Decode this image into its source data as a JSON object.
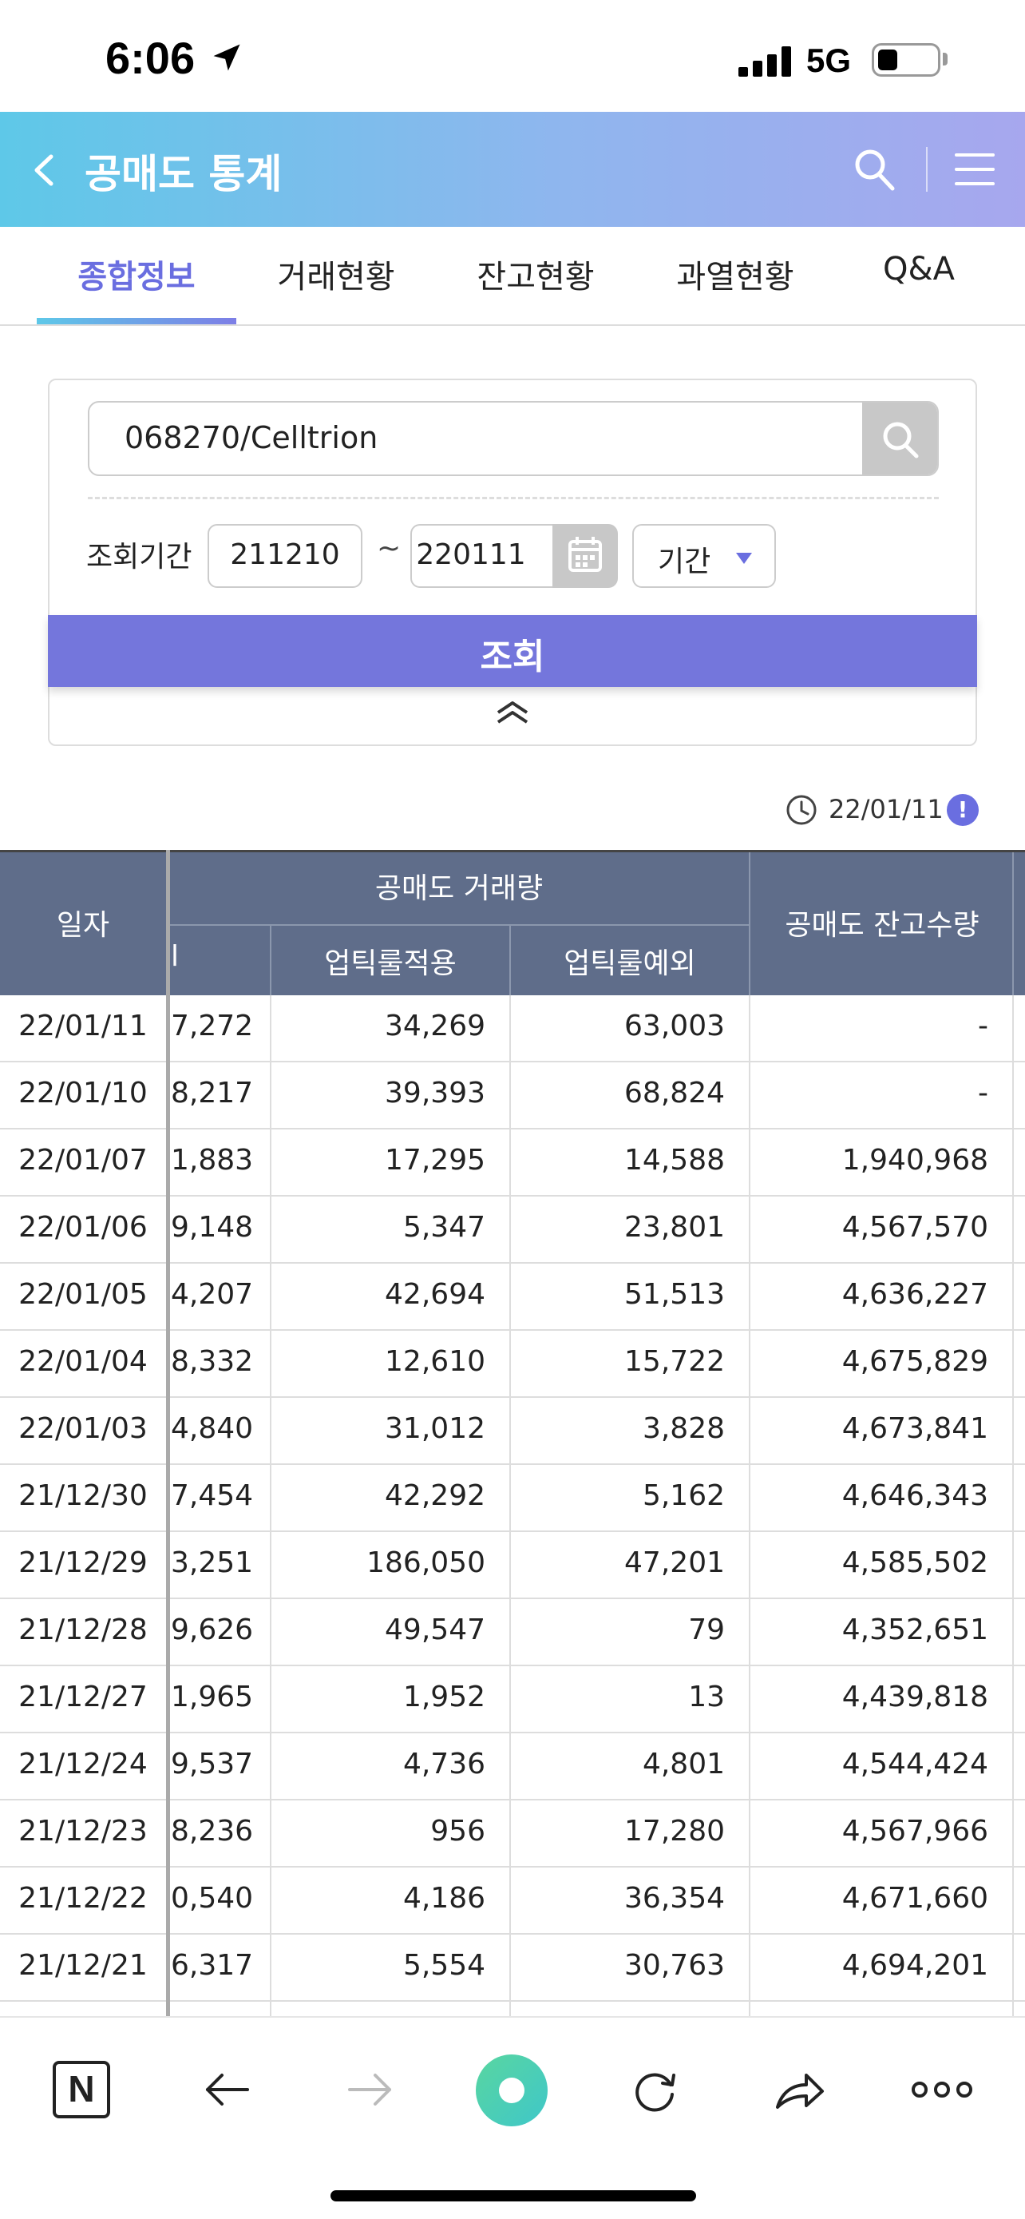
{
  "status_bar": {
    "time": "6:06",
    "network": "5G"
  },
  "header": {
    "title": "공매도 통계"
  },
  "tabs": [
    {
      "label": "종합정보",
      "active": true
    },
    {
      "label": "거래현황",
      "active": false
    },
    {
      "label": "잔고현황",
      "active": false
    },
    {
      "label": "과열현황",
      "active": false
    },
    {
      "label": "Q&A",
      "active": false
    }
  ],
  "search": {
    "code_value": "068270/Celltrion",
    "period_label": "조회기간",
    "start_date": "211210",
    "tilde": "~",
    "end_date": "220111",
    "period_select": "기간",
    "query_button": "조회"
  },
  "stamp": {
    "date": "22/01/11",
    "info_label": "!"
  },
  "table": {
    "headers": {
      "date": "일자",
      "volume_group": "공매도 거래량",
      "partial_col": "l",
      "uptick_applied": "업틱룰적용",
      "uptick_exempt": "업틱룰예외",
      "balance": "공매도 잔고수량"
    },
    "rows": [
      {
        "date": "22/01/11",
        "partial": "7,272",
        "uptick_applied": "34,269",
        "uptick_exempt": "63,003",
        "balance": "-"
      },
      {
        "date": "22/01/10",
        "partial": "8,217",
        "uptick_applied": "39,393",
        "uptick_exempt": "68,824",
        "balance": "-"
      },
      {
        "date": "22/01/07",
        "partial": "1,883",
        "uptick_applied": "17,295",
        "uptick_exempt": "14,588",
        "balance": "1,940,968"
      },
      {
        "date": "22/01/06",
        "partial": "9,148",
        "uptick_applied": "5,347",
        "uptick_exempt": "23,801",
        "balance": "4,567,570"
      },
      {
        "date": "22/01/05",
        "partial": "4,207",
        "uptick_applied": "42,694",
        "uptick_exempt": "51,513",
        "balance": "4,636,227"
      },
      {
        "date": "22/01/04",
        "partial": "8,332",
        "uptick_applied": "12,610",
        "uptick_exempt": "15,722",
        "balance": "4,675,829"
      },
      {
        "date": "22/01/03",
        "partial": "4,840",
        "uptick_applied": "31,012",
        "uptick_exempt": "3,828",
        "balance": "4,673,841"
      },
      {
        "date": "21/12/30",
        "partial": "7,454",
        "uptick_applied": "42,292",
        "uptick_exempt": "5,162",
        "balance": "4,646,343"
      },
      {
        "date": "21/12/29",
        "partial": "3,251",
        "uptick_applied": "186,050",
        "uptick_exempt": "47,201",
        "balance": "4,585,502"
      },
      {
        "date": "21/12/28",
        "partial": "9,626",
        "uptick_applied": "49,547",
        "uptick_exempt": "79",
        "balance": "4,352,651"
      },
      {
        "date": "21/12/27",
        "partial": "1,965",
        "uptick_applied": "1,952",
        "uptick_exempt": "13",
        "balance": "4,439,818"
      },
      {
        "date": "21/12/24",
        "partial": "9,537",
        "uptick_applied": "4,736",
        "uptick_exempt": "4,801",
        "balance": "4,544,424"
      },
      {
        "date": "21/12/23",
        "partial": "8,236",
        "uptick_applied": "956",
        "uptick_exempt": "17,280",
        "balance": "4,567,966"
      },
      {
        "date": "21/12/22",
        "partial": "0,540",
        "uptick_applied": "4,186",
        "uptick_exempt": "36,354",
        "balance": "4,671,660"
      },
      {
        "date": "21/12/21",
        "partial": "6,317",
        "uptick_applied": "5,554",
        "uptick_exempt": "30,763",
        "balance": "4,694,201"
      }
    ]
  },
  "bottom_bar": {
    "n_label": "N"
  },
  "colors": {
    "accent": "#7476dc",
    "header_start": "#5ec8e8",
    "header_end": "#a7a7ee",
    "table_head": "#5f6d8a"
  }
}
